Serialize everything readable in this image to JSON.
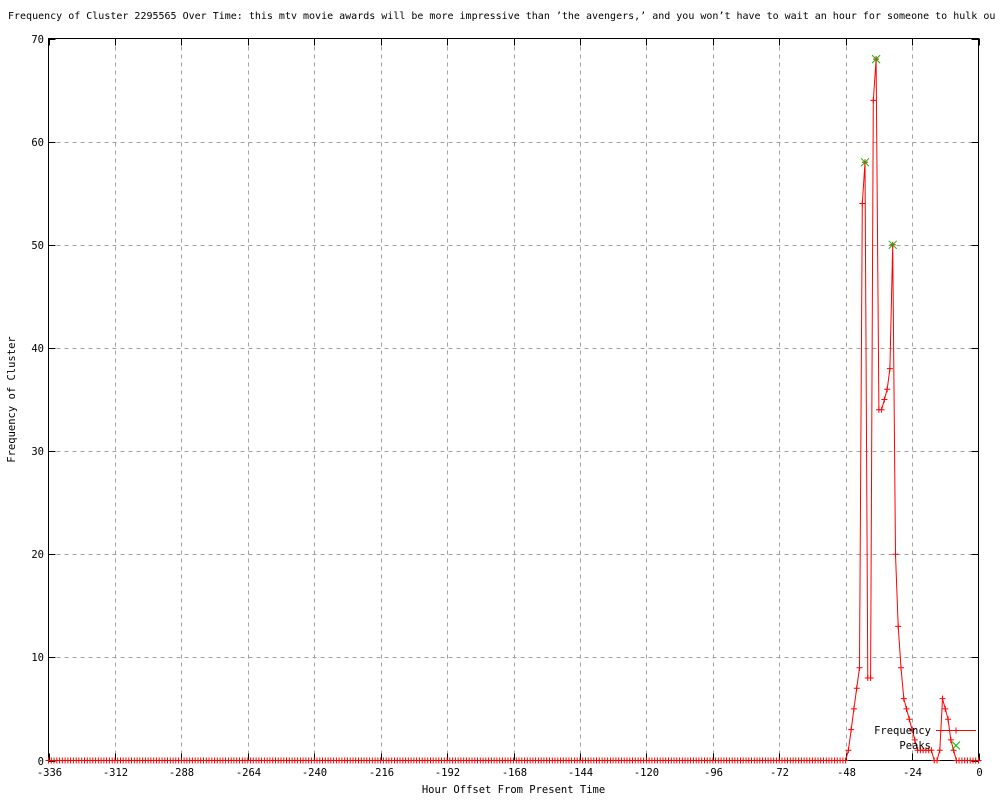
{
  "chart_data": {
    "type": "line",
    "title": "Frequency of Cluster 2295565 Over Time: this mtv movie awards will be more impressive than ’the avengers,’ and you won’t have to wait an hour for someone to hulk ou",
    "xlabel": "Hour Offset From Present Time",
    "ylabel": "Frequency of Cluster",
    "xlim": [
      -336,
      0
    ],
    "ylim": [
      0,
      70
    ],
    "x_ticks": [
      -336,
      -312,
      -288,
      -264,
      -240,
      -216,
      -192,
      -168,
      -144,
      -120,
      -96,
      -72,
      -48,
      -24,
      0
    ],
    "y_ticks": [
      0,
      10,
      20,
      30,
      40,
      50,
      60,
      70
    ],
    "grid": true,
    "legend_position": "inside-bottom-right",
    "series": [
      {
        "name": "Frequency",
        "style": "linespoints",
        "marker": "plus",
        "color": "#ff0000",
        "x_start": -336,
        "x_end": 0,
        "x_step": 1,
        "default_value": 0,
        "values_by_hour": {
          "-50": 0,
          "-49": 0,
          "-48": 0,
          "-47": 1,
          "-46": 3,
          "-45": 5,
          "-44": 7,
          "-43": 9,
          "-42": 54,
          "-41": 58,
          "-40": 8,
          "-39": 8,
          "-38": 64,
          "-37": 68,
          "-36": 34,
          "-35": 34,
          "-34": 35,
          "-33": 36,
          "-32": 38,
          "-31": 50,
          "-30": 20,
          "-29": 13,
          "-28": 9,
          "-27": 6,
          "-26": 5,
          "-25": 4,
          "-24": 3,
          "-23": 2,
          "-22": 1,
          "-21": 1,
          "-20": 1,
          "-19": 1,
          "-18": 1,
          "-17": 1,
          "-16": 0,
          "-15": 0,
          "-14": 1,
          "-13": 6,
          "-12": 5,
          "-11": 4,
          "-10": 2,
          "-9": 1,
          "-8": 0,
          "-7": 0,
          "-6": 0,
          "-5": 0,
          "-4": 0,
          "-3": 0,
          "-2": 0,
          "-1": 0,
          "0": 0
        }
      },
      {
        "name": "Peaks",
        "style": "points",
        "marker": "x",
        "color": "#00c000",
        "points": [
          [
            -41,
            58
          ],
          [
            -37,
            68
          ],
          [
            -31,
            50
          ]
        ]
      }
    ]
  },
  "legend": {
    "entries": [
      {
        "label": "Frequency",
        "marker": "plus",
        "color": "#ff0000"
      },
      {
        "label": "Peaks",
        "marker": "x",
        "color": "#00c000"
      }
    ]
  },
  "colors": {
    "series": "#ff0000",
    "peaks": "#00c000",
    "grid": "#a0a0a0",
    "axis": "#000000",
    "text": "#000000",
    "background": "#ffffff"
  }
}
